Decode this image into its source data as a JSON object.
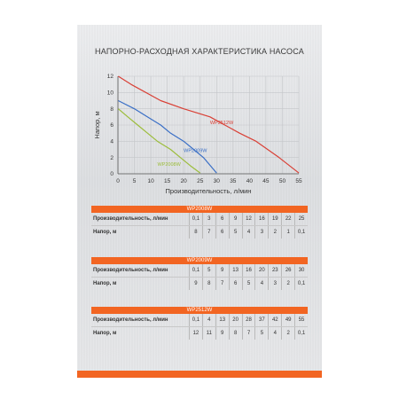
{
  "title": "НАПОРНО-РАСХОДНАЯ ХАРАКТЕРИСТИКА НАСОСА",
  "colors": {
    "accent": "#f26522",
    "wp2008w": "#9cbd3b",
    "wp2009w": "#3a6fc6",
    "wp2512w": "#d94036"
  },
  "chart_data": {
    "type": "line",
    "xlabel": "Производительность, л/мин",
    "ylabel": "Напор, м",
    "xlim": [
      0,
      55
    ],
    "ylim": [
      0,
      12
    ],
    "xticks": [
      0,
      5,
      10,
      15,
      20,
      25,
      30,
      35,
      40,
      45,
      50,
      55
    ],
    "yticks": [
      0,
      2,
      4,
      6,
      8,
      10,
      12
    ],
    "grid": true,
    "series": [
      {
        "name": "WP2008W",
        "color": "#9cbd3b",
        "x": [
          0.1,
          3,
          6,
          9,
          12,
          16,
          19,
          22,
          25
        ],
        "y": [
          8,
          7,
          6,
          5,
          4,
          3,
          2,
          1,
          0.1
        ]
      },
      {
        "name": "WP2009W",
        "color": "#3a6fc6",
        "x": [
          0.1,
          5,
          9,
          13,
          16,
          20,
          23,
          26,
          30
        ],
        "y": [
          9,
          8,
          7,
          6,
          5,
          4,
          3,
          2,
          0.1
        ]
      },
      {
        "name": "WP2512W",
        "color": "#d94036",
        "x": [
          0.1,
          4,
          13,
          20,
          28,
          37,
          42,
          49,
          55
        ],
        "y": [
          12,
          11,
          9,
          8,
          7,
          5,
          4,
          2,
          0.1
        ]
      }
    ]
  },
  "tables": [
    {
      "header": "WP2008W",
      "row1_label": "Производительность, л/мин",
      "row1": [
        "0,1",
        "3",
        "6",
        "9",
        "12",
        "16",
        "19",
        "22",
        "25"
      ],
      "row2_label": "Напор, м",
      "row2": [
        "8",
        "7",
        "6",
        "5",
        "4",
        "3",
        "2",
        "1",
        "0,1"
      ]
    },
    {
      "header": "WP2009W",
      "row1_label": "Производительность, л/мин",
      "row1": [
        "0,1",
        "5",
        "9",
        "13",
        "16",
        "20",
        "23",
        "26",
        "30"
      ],
      "row2_label": "Напор, м",
      "row2": [
        "9",
        "8",
        "7",
        "6",
        "5",
        "4",
        "3",
        "2",
        "0,1"
      ]
    },
    {
      "header": "WP2512W",
      "row1_label": "Производительность, л/мин",
      "row1": [
        "0,1",
        "4",
        "13",
        "20",
        "28",
        "37",
        "42",
        "49",
        "55"
      ],
      "row2_label": "Напор, м",
      "row2": [
        "12",
        "11",
        "9",
        "8",
        "7",
        "5",
        "4",
        "2",
        "0,1"
      ]
    }
  ]
}
